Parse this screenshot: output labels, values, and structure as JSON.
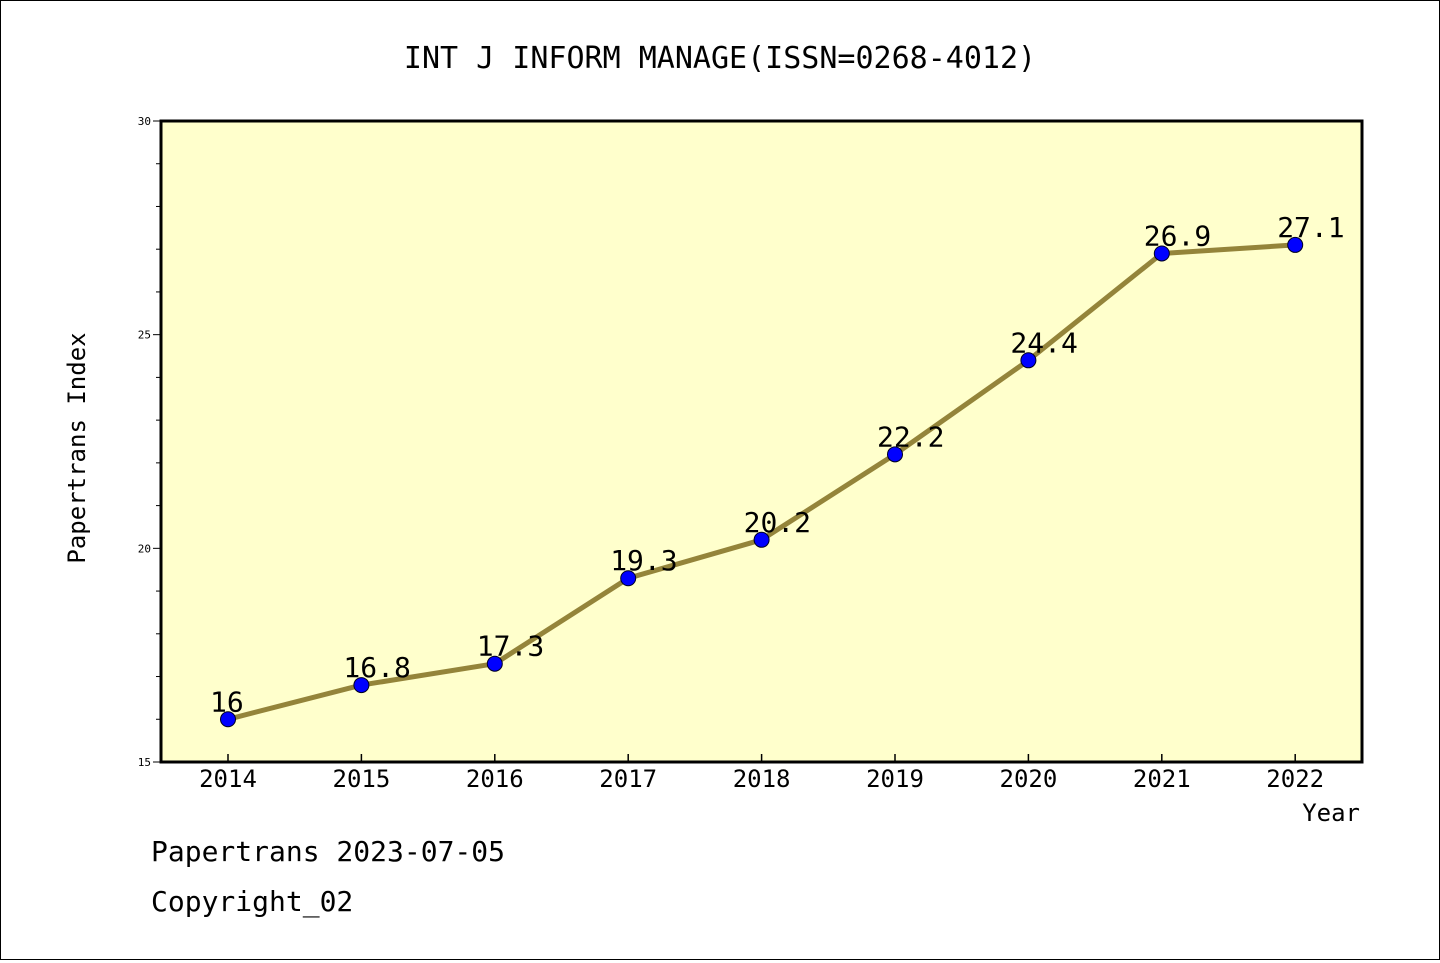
{
  "chart_data": {
    "type": "line",
    "title": "INT J INFORM MANAGE(ISSN=0268-4012)",
    "xlabel": "Year",
    "ylabel": "Papertrans Index",
    "categories": [
      "2014",
      "2015",
      "2016",
      "2017",
      "2018",
      "2019",
      "2020",
      "2021",
      "2022"
    ],
    "values": [
      16,
      16.8,
      17.3,
      19.3,
      20.2,
      22.2,
      24.4,
      26.9,
      27.1
    ],
    "value_labels": [
      "16",
      "16.8",
      "17.3",
      "19.3",
      "20.2",
      "22.2",
      "24.4",
      "26.9",
      "27.1"
    ],
    "ylim": [
      15,
      30
    ],
    "yticks": [
      "15",
      "20",
      "25",
      "30"
    ],
    "grid": false,
    "colors": {
      "plot_background": "#ffffcc",
      "line": "#94843a",
      "marker": "#0000ff"
    }
  },
  "footer": {
    "date_line": "Papertrans 2023-07-05",
    "copyright_line": "Copyright_02"
  }
}
